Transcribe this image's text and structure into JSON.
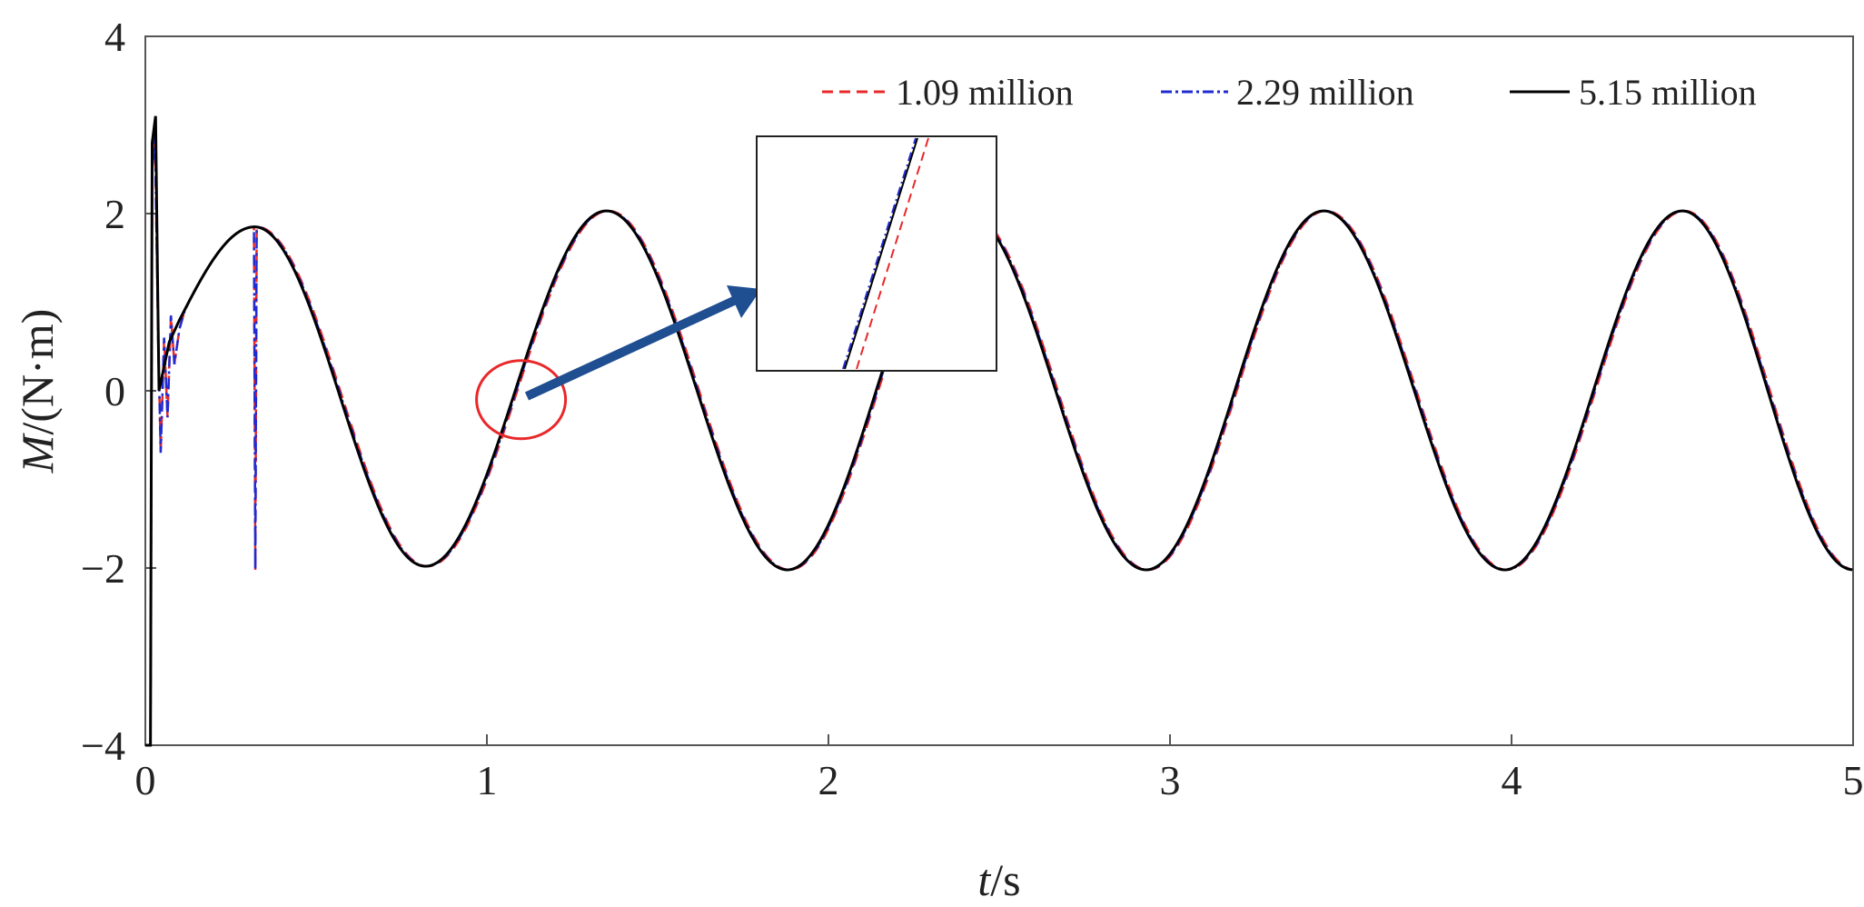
{
  "chart_data": {
    "type": "line",
    "x_label_italic": "t",
    "x_label_rest": "/s",
    "y_label_italic": "M",
    "y_label_rest": "/(N·m)",
    "xlim": [
      0,
      5
    ],
    "ylim": [
      -4,
      4
    ],
    "x_ticks": [
      "0",
      "1",
      "2",
      "3",
      "4",
      "5"
    ],
    "y_ticks": [
      "4",
      "2",
      "0",
      "−2",
      "−4"
    ],
    "grid": false,
    "legend_position": "top-right",
    "series": [
      {
        "name": "1.09 million",
        "color": "#e8282a",
        "dash": "dashed"
      },
      {
        "name": "2.29 million",
        "color": "#1f2bd1",
        "dash": "dash-dot"
      },
      {
        "name": "5.15 million",
        "color": "#000000",
        "dash": "solid"
      }
    ],
    "steady_state": {
      "period_s": 1.05,
      "first_peak": {
        "t": 0.32,
        "M": 1.85
      },
      "first_trough": {
        "t": 0.82,
        "M": -1.98
      },
      "peaks": [
        {
          "t": 1.35,
          "M": 2.03
        },
        {
          "t": 2.4,
          "M": 2.03
        },
        {
          "t": 3.45,
          "M": 2.03
        },
        {
          "t": 4.5,
          "M": 2.03
        }
      ],
      "troughs": [
        {
          "t": 1.88,
          "M": -2.02
        },
        {
          "t": 2.93,
          "M": -2.02
        },
        {
          "t": 3.98,
          "M": -2.02
        },
        {
          "t": 5.0,
          "M": -2.02
        }
      ]
    },
    "initial_transient": {
      "spike_max": {
        "t": 0.03,
        "M": 3.1
      },
      "spike_min": {
        "t": 0.015,
        "M": -4.0
      },
      "dip": {
        "t": 0.04,
        "M": 0.0
      }
    },
    "annotations": {
      "highlight_circle": {
        "t": 1.1,
        "M": -0.1
      },
      "zoom_inset": "magnified view of the zero crossing near t = 1.1 s"
    }
  }
}
